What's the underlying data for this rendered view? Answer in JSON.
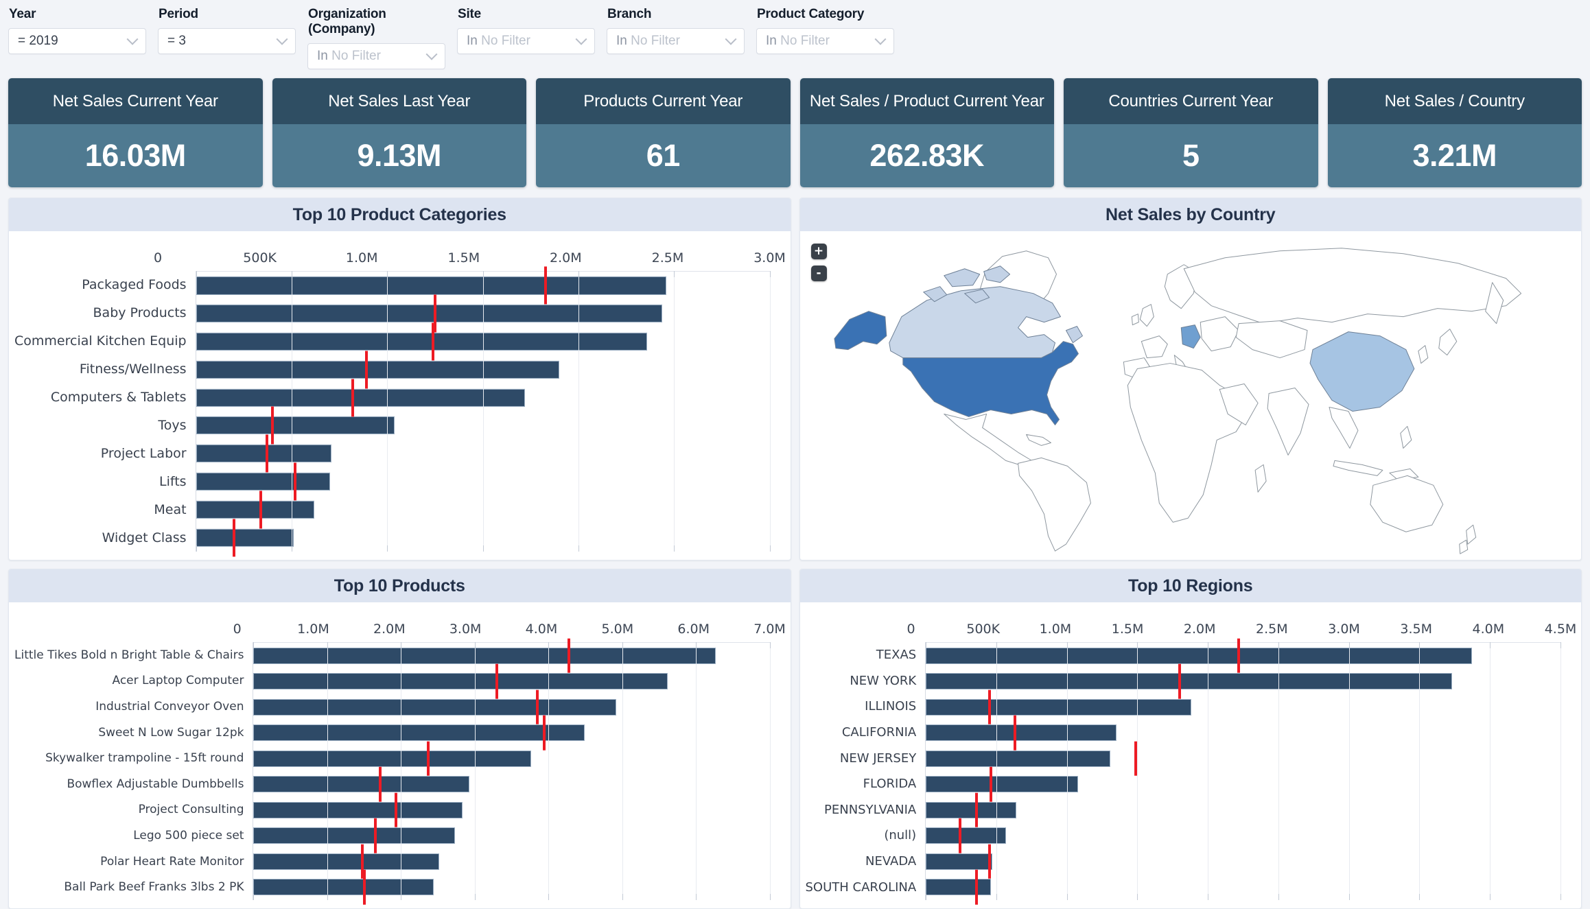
{
  "filters": [
    {
      "label": "Year",
      "value": "= 2019",
      "muted": false
    },
    {
      "label": "Period",
      "value": "= 3",
      "muted": false
    },
    {
      "label": "Organization (Company)",
      "value": "In No Filter",
      "muted": true
    },
    {
      "label": "Site",
      "value": "In No Filter",
      "muted": true
    },
    {
      "label": "Branch",
      "value": "In No Filter",
      "muted": true
    },
    {
      "label": "Product Category",
      "value": "In No Filter",
      "muted": true
    }
  ],
  "kpis": [
    {
      "title": "Net Sales Current Year",
      "value": "16.03M"
    },
    {
      "title": "Net Sales Last Year",
      "value": "9.13M"
    },
    {
      "title": "Products Current Year",
      "value": "61"
    },
    {
      "title": "Net Sales / Product Current Year",
      "value": "262.83K"
    },
    {
      "title": "Countries Current Year",
      "value": "5"
    },
    {
      "title": "Net Sales / Country",
      "value": "3.21M"
    }
  ],
  "map": {
    "title": "Net Sales by Country",
    "zoom_in_label": "+",
    "zoom_out_label": "-",
    "highlighted_countries": [
      {
        "id": "usa",
        "name": "United States",
        "fill": "#3a72b4"
      },
      {
        "id": "alaska",
        "name": "United States (Alaska)",
        "fill": "#3a72b4"
      },
      {
        "id": "canada",
        "name": "Canada",
        "fill": "#c9d7e9"
      },
      {
        "id": "canada-east",
        "name": "Canada (East)",
        "fill": "#c3d2e6"
      },
      {
        "id": "germany",
        "name": "Germany",
        "fill": "#6f9fd0"
      },
      {
        "id": "china",
        "name": "China",
        "fill": "#a6c4e3"
      }
    ]
  },
  "chart_data": [
    {
      "type": "bar",
      "orientation": "horizontal",
      "title": "Top 10 Product Categories",
      "categories": [
        "Packaged Foods",
        "Baby Products",
        "Commercial Kitchen Equip",
        "Fitness/Wellness",
        "Computers & Tablets",
        "Toys",
        "Project Labor",
        "Lifts",
        "Meat",
        "Widget Class"
      ],
      "series": [
        {
          "name": "Net Sales",
          "style": "bar",
          "values": [
            2460000,
            2440000,
            2360000,
            1900000,
            1720000,
            1040000,
            710000,
            700000,
            620000,
            510000
          ]
        },
        {
          "name": "Target",
          "style": "target-marker",
          "values": [
            1830000,
            1250000,
            1240000,
            890000,
            820000,
            400000,
            370000,
            520000,
            340000,
            200000
          ]
        }
      ],
      "axis": {
        "min": 0,
        "max": 3000000,
        "tick_values": [
          0,
          500000,
          1000000,
          1500000,
          2000000,
          2500000,
          3000000
        ],
        "tick_labels": [
          "0",
          "500K",
          "1.0M",
          "1.5M",
          "2.0M",
          "2.5M",
          "3.0M"
        ]
      },
      "bar_color": "#2e4a67",
      "target_color": "#ed1b24",
      "grid": true
    },
    {
      "type": "bar",
      "orientation": "horizontal",
      "title": "Top 10 Products",
      "categories": [
        "Little Tikes Bold n Bright Table & Chairs",
        "Acer Laptop Computer",
        "Industrial Conveyor Oven",
        "Sweet N Low Sugar 12pk",
        "Skywalker trampoline - 15ft round",
        "Bowflex Adjustable Dumbbells",
        "Project Consulting",
        "Lego 500 piece set",
        "Polar Heart Rate Monitor",
        "Ball Park Beef Franks 3lbs 2 PK"
      ],
      "series": [
        {
          "name": "Net Sales",
          "style": "bar",
          "values": [
            6270000,
            5620000,
            4920000,
            4490000,
            3770000,
            2930000,
            2830000,
            2730000,
            2520000,
            2440000
          ]
        },
        {
          "name": "Target",
          "style": "target-marker",
          "values": [
            4280000,
            3300000,
            3850000,
            3940000,
            2370000,
            1720000,
            1930000,
            1650000,
            1480000,
            1500000
          ]
        }
      ],
      "axis": {
        "min": 0,
        "max": 7000000,
        "tick_values": [
          0,
          1000000,
          2000000,
          3000000,
          4000000,
          5000000,
          6000000,
          7000000
        ],
        "tick_labels": [
          "0",
          "1.0M",
          "2.0M",
          "3.0M",
          "4.0M",
          "5.0M",
          "6.0M",
          "7.0M"
        ]
      },
      "bar_color": "#2e4a67",
      "target_color": "#ed1b24",
      "grid": true
    },
    {
      "type": "bar",
      "orientation": "horizontal",
      "title": "Top 10 Regions",
      "categories": [
        "TEXAS",
        "NEW YORK",
        "ILLINOIS",
        "CALIFORNIA",
        "NEW JERSEY",
        "FLORIDA",
        "PENNSYLVANIA",
        "(null)",
        "NEVADA",
        "SOUTH CAROLINA"
      ],
      "series": [
        {
          "name": "Net Sales",
          "style": "bar",
          "values": [
            3870000,
            3730000,
            1880000,
            1350000,
            1310000,
            1080000,
            640000,
            570000,
            470000,
            460000
          ]
        },
        {
          "name": "Target",
          "style": "target-marker",
          "values": [
            2220000,
            1800000,
            450000,
            630000,
            1490000,
            460000,
            360000,
            240000,
            450000,
            360000
          ]
        }
      ],
      "axis": {
        "min": 0,
        "max": 4500000,
        "tick_values": [
          0,
          500000,
          1000000,
          1500000,
          2000000,
          2500000,
          3000000,
          3500000,
          4000000,
          4500000
        ],
        "tick_labels": [
          "0",
          "500K",
          "1.0M",
          "1.5M",
          "2.0M",
          "2.5M",
          "3.0M",
          "3.5M",
          "4.0M",
          "4.5M"
        ]
      },
      "bar_color": "#2e4a67",
      "target_color": "#ed1b24",
      "grid": true
    }
  ]
}
